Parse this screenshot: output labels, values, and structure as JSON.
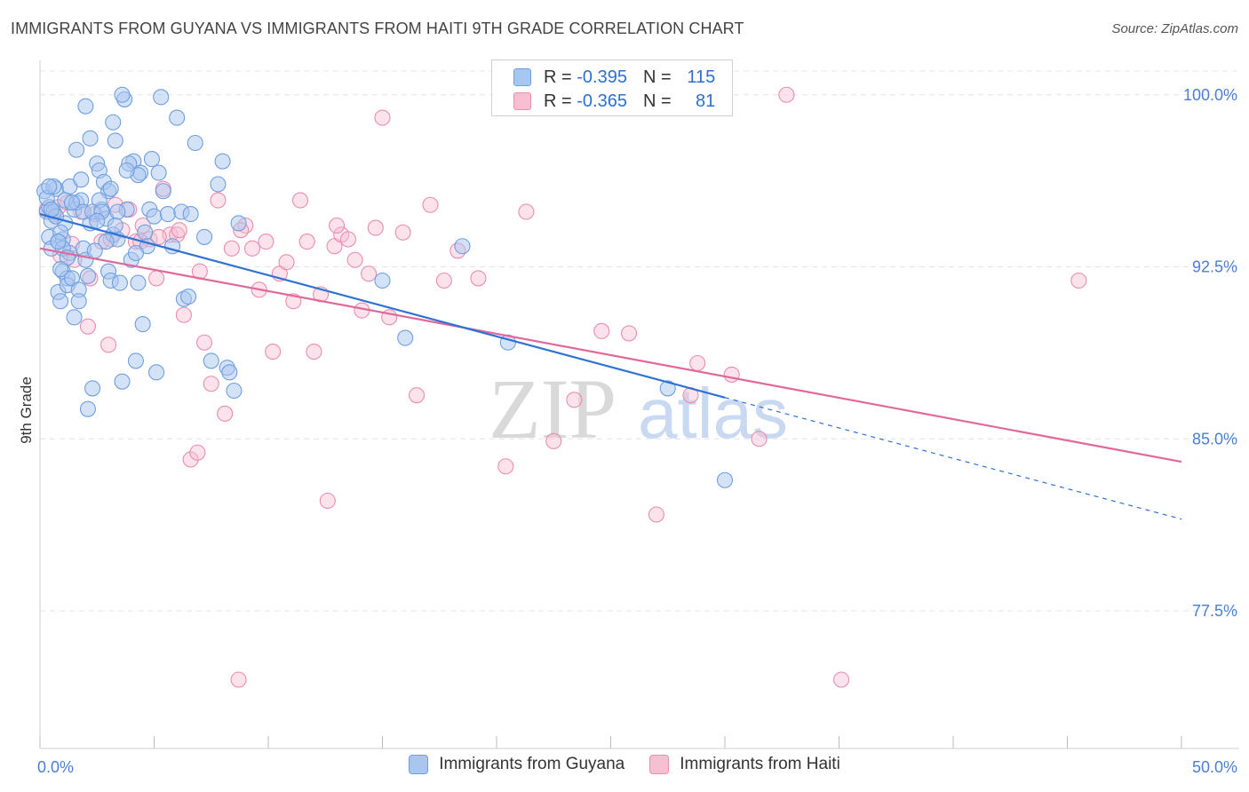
{
  "header": {
    "title": "IMMIGRANTS FROM GUYANA VS IMMIGRANTS FROM HAITI 9TH GRADE CORRELATION CHART",
    "source": "Source: ZipAtlas.com"
  },
  "colors": {
    "blue_fill": "#a9c6f0",
    "blue_stroke": "#6f9fe0",
    "blue_line": "#2f72d4",
    "pink_fill": "#f6bfd2",
    "pink_stroke": "#eb8db0",
    "pink_line": "#e0689a",
    "grid": "#e4e4e4",
    "tick_text": "#4a7fd4"
  },
  "legend": {
    "rows": [
      {
        "r_label": "R =",
        "r_value": "-0.395",
        "n_label": "N =",
        "n_value": "115"
      },
      {
        "r_label": "R =",
        "r_value": "-0.365",
        "n_label": "N =",
        "n_value": "81"
      }
    ]
  },
  "bottom_legend": [
    "Immigrants from Guyana",
    "Immigrants from Haiti"
  ],
  "watermark": {
    "zip": "ZIP",
    "atlas": "atlas"
  },
  "chart_data": {
    "type": "scatter",
    "title": "IMMIGRANTS FROM GUYANA VS IMMIGRANTS FROM HAITI 9TH GRADE CORRELATION CHART",
    "xlabel": "",
    "ylabel": "9th Grade",
    "xlim": [
      0,
      50
    ],
    "ylim": [
      71.5,
      101.5
    ],
    "y_ticks": [
      {
        "value": 100.0,
        "label": "100.0%"
      },
      {
        "value": 92.5,
        "label": "92.5%"
      },
      {
        "value": 85.0,
        "label": "85.0%"
      },
      {
        "value": 77.5,
        "label": "77.5%"
      }
    ],
    "x_tick_labels": [
      "0.0%",
      "50.0%"
    ],
    "x_minor_ticks": [
      0,
      5,
      10,
      15,
      20,
      25,
      30,
      35,
      40,
      45,
      50
    ],
    "series": [
      {
        "name": "Immigrants from Guyana",
        "R": -0.395,
        "N": 115,
        "trend": {
          "x0": 0.0,
          "y0": 94.8,
          "x1": 30.0,
          "y1": 86.8,
          "dash_to_x": 50.0,
          "dash_to_y": 81.5
        },
        "points": [
          [
            0.2,
            95.8
          ],
          [
            0.3,
            94.9
          ],
          [
            0.4,
            95.1
          ],
          [
            0.4,
            93.8
          ],
          [
            0.5,
            94.5
          ],
          [
            0.5,
            93.3
          ],
          [
            0.6,
            94.9
          ],
          [
            0.7,
            95.9
          ],
          [
            0.8,
            93.6
          ],
          [
            0.8,
            91.4
          ],
          [
            0.9,
            91.0
          ],
          [
            1.0,
            92.3
          ],
          [
            1.0,
            93.7
          ],
          [
            1.1,
            94.4
          ],
          [
            1.2,
            92.0
          ],
          [
            1.2,
            91.7
          ],
          [
            1.3,
            96.0
          ],
          [
            1.4,
            92.0
          ],
          [
            1.5,
            95.0
          ],
          [
            1.5,
            90.3
          ],
          [
            1.6,
            97.6
          ],
          [
            1.7,
            91.5
          ],
          [
            1.8,
            96.3
          ],
          [
            1.9,
            93.3
          ],
          [
            2.0,
            99.5
          ],
          [
            2.0,
            92.8
          ],
          [
            2.1,
            86.3
          ],
          [
            2.2,
            94.4
          ],
          [
            2.3,
            87.2
          ],
          [
            2.4,
            93.2
          ],
          [
            2.5,
            97.0
          ],
          [
            2.6,
            96.7
          ],
          [
            2.7,
            95.0
          ],
          [
            2.8,
            96.2
          ],
          [
            2.9,
            94.6
          ],
          [
            3.0,
            95.8
          ],
          [
            3.0,
            92.3
          ],
          [
            3.1,
            91.9
          ],
          [
            3.2,
            98.8
          ],
          [
            3.2,
            93.9
          ],
          [
            3.3,
            98.0
          ],
          [
            3.4,
            93.7
          ],
          [
            3.5,
            91.8
          ],
          [
            3.6,
            87.5
          ],
          [
            3.7,
            99.8
          ],
          [
            3.8,
            95.0
          ],
          [
            4.0,
            92.8
          ],
          [
            4.1,
            97.1
          ],
          [
            4.2,
            88.4
          ],
          [
            4.3,
            91.8
          ],
          [
            4.4,
            96.6
          ],
          [
            4.5,
            90.0
          ],
          [
            4.6,
            94.0
          ],
          [
            4.7,
            93.4
          ],
          [
            4.8,
            95.0
          ],
          [
            4.9,
            97.2
          ],
          [
            5.0,
            94.7
          ],
          [
            5.1,
            87.9
          ],
          [
            5.2,
            96.6
          ],
          [
            5.3,
            99.9
          ],
          [
            5.4,
            95.8
          ],
          [
            5.6,
            94.8
          ],
          [
            5.8,
            93.4
          ],
          [
            6.0,
            99.0
          ],
          [
            6.2,
            94.9
          ],
          [
            6.3,
            91.1
          ],
          [
            6.5,
            91.2
          ],
          [
            6.6,
            94.8
          ],
          [
            6.8,
            97.9
          ],
          [
            7.2,
            93.8
          ],
          [
            7.5,
            88.4
          ],
          [
            7.8,
            96.1
          ],
          [
            8.0,
            97.1
          ],
          [
            8.2,
            88.1
          ],
          [
            8.3,
            87.9
          ],
          [
            8.5,
            87.1
          ],
          [
            8.7,
            94.4
          ],
          [
            0.3,
            95.5
          ],
          [
            0.6,
            96.0
          ],
          [
            0.9,
            94.0
          ],
          [
            1.1,
            95.4
          ],
          [
            1.3,
            93.1
          ],
          [
            1.6,
            95.3
          ],
          [
            1.8,
            95.4
          ],
          [
            2.2,
            98.1
          ],
          [
            2.6,
            95.4
          ],
          [
            2.9,
            93.6
          ],
          [
            3.4,
            94.9
          ],
          [
            3.9,
            97.0
          ],
          [
            4.2,
            93.1
          ],
          [
            0.4,
            96.0
          ],
          [
            0.7,
            94.7
          ],
          [
            1.0,
            93.3
          ],
          [
            1.4,
            95.3
          ],
          [
            1.9,
            94.9
          ],
          [
            2.3,
            94.9
          ],
          [
            2.7,
            94.9
          ],
          [
            3.1,
            95.9
          ],
          [
            3.6,
            100.0
          ],
          [
            4.3,
            96.5
          ],
          [
            0.5,
            95.0
          ],
          [
            0.8,
            93.6
          ],
          [
            1.2,
            92.9
          ],
          [
            1.7,
            91.0
          ],
          [
            2.1,
            92.1
          ],
          [
            2.5,
            94.5
          ],
          [
            3.3,
            94.3
          ],
          [
            3.8,
            96.7
          ],
          [
            15.0,
            91.9
          ],
          [
            16.0,
            89.4
          ],
          [
            18.5,
            93.4
          ],
          [
            20.5,
            89.2
          ],
          [
            27.5,
            87.2
          ],
          [
            30.0,
            83.2
          ],
          [
            0.9,
            92.4
          ]
        ]
      },
      {
        "name": "Immigrants from Haiti",
        "R": -0.365,
        "N": 81,
        "trend": {
          "x0": 0.0,
          "y0": 93.3,
          "x1": 50.0,
          "y1": 84.0
        },
        "points": [
          [
            0.3,
            95.0
          ],
          [
            0.6,
            94.8
          ],
          [
            0.9,
            93.0
          ],
          [
            1.2,
            95.3
          ],
          [
            1.5,
            92.8
          ],
          [
            1.8,
            94.9
          ],
          [
            2.1,
            89.9
          ],
          [
            2.4,
            94.8
          ],
          [
            2.7,
            93.6
          ],
          [
            3.0,
            89.1
          ],
          [
            3.3,
            95.2
          ],
          [
            3.6,
            94.1
          ],
          [
            3.9,
            95.0
          ],
          [
            4.2,
            93.6
          ],
          [
            4.5,
            94.3
          ],
          [
            4.8,
            93.7
          ],
          [
            5.1,
            92.0
          ],
          [
            5.4,
            95.9
          ],
          [
            5.7,
            93.9
          ],
          [
            6.0,
            93.9
          ],
          [
            6.3,
            90.4
          ],
          [
            6.6,
            84.1
          ],
          [
            6.9,
            84.4
          ],
          [
            7.2,
            89.2
          ],
          [
            7.5,
            87.4
          ],
          [
            7.8,
            95.4
          ],
          [
            8.1,
            86.1
          ],
          [
            8.4,
            93.3
          ],
          [
            8.7,
            74.5
          ],
          [
            9.0,
            94.3
          ],
          [
            9.3,
            93.3
          ],
          [
            9.6,
            91.5
          ],
          [
            9.9,
            93.6
          ],
          [
            10.2,
            88.8
          ],
          [
            10.5,
            92.2
          ],
          [
            10.8,
            92.7
          ],
          [
            11.1,
            91.0
          ],
          [
            11.4,
            95.4
          ],
          [
            11.7,
            93.6
          ],
          [
            12.0,
            88.8
          ],
          [
            12.3,
            91.3
          ],
          [
            12.6,
            82.3
          ],
          [
            12.9,
            93.4
          ],
          [
            13.2,
            93.9
          ],
          [
            13.5,
            93.7
          ],
          [
            13.8,
            92.8
          ],
          [
            14.1,
            90.6
          ],
          [
            14.4,
            92.2
          ],
          [
            14.7,
            94.2
          ],
          [
            15.0,
            99.0
          ],
          [
            15.3,
            90.3
          ],
          [
            15.9,
            94.0
          ],
          [
            16.5,
            86.9
          ],
          [
            17.1,
            95.2
          ],
          [
            17.7,
            91.9
          ],
          [
            18.3,
            93.2
          ],
          [
            19.2,
            92.0
          ],
          [
            20.4,
            83.8
          ],
          [
            21.3,
            94.9
          ],
          [
            22.5,
            84.9
          ],
          [
            23.4,
            86.7
          ],
          [
            24.6,
            89.7
          ],
          [
            25.8,
            89.6
          ],
          [
            27.0,
            81.7
          ],
          [
            28.5,
            86.9
          ],
          [
            28.8,
            88.3
          ],
          [
            30.3,
            87.8
          ],
          [
            31.5,
            85.0
          ],
          [
            32.7,
            100.0
          ],
          [
            35.1,
            74.5
          ],
          [
            45.5,
            91.9
          ],
          [
            0.8,
            95.1
          ],
          [
            1.4,
            93.5
          ],
          [
            2.2,
            92.0
          ],
          [
            3.1,
            93.7
          ],
          [
            4.4,
            93.6
          ],
          [
            5.2,
            93.8
          ],
          [
            6.1,
            94.1
          ],
          [
            7.0,
            92.3
          ],
          [
            8.8,
            94.1
          ],
          [
            13.0,
            94.3
          ]
        ]
      }
    ]
  }
}
